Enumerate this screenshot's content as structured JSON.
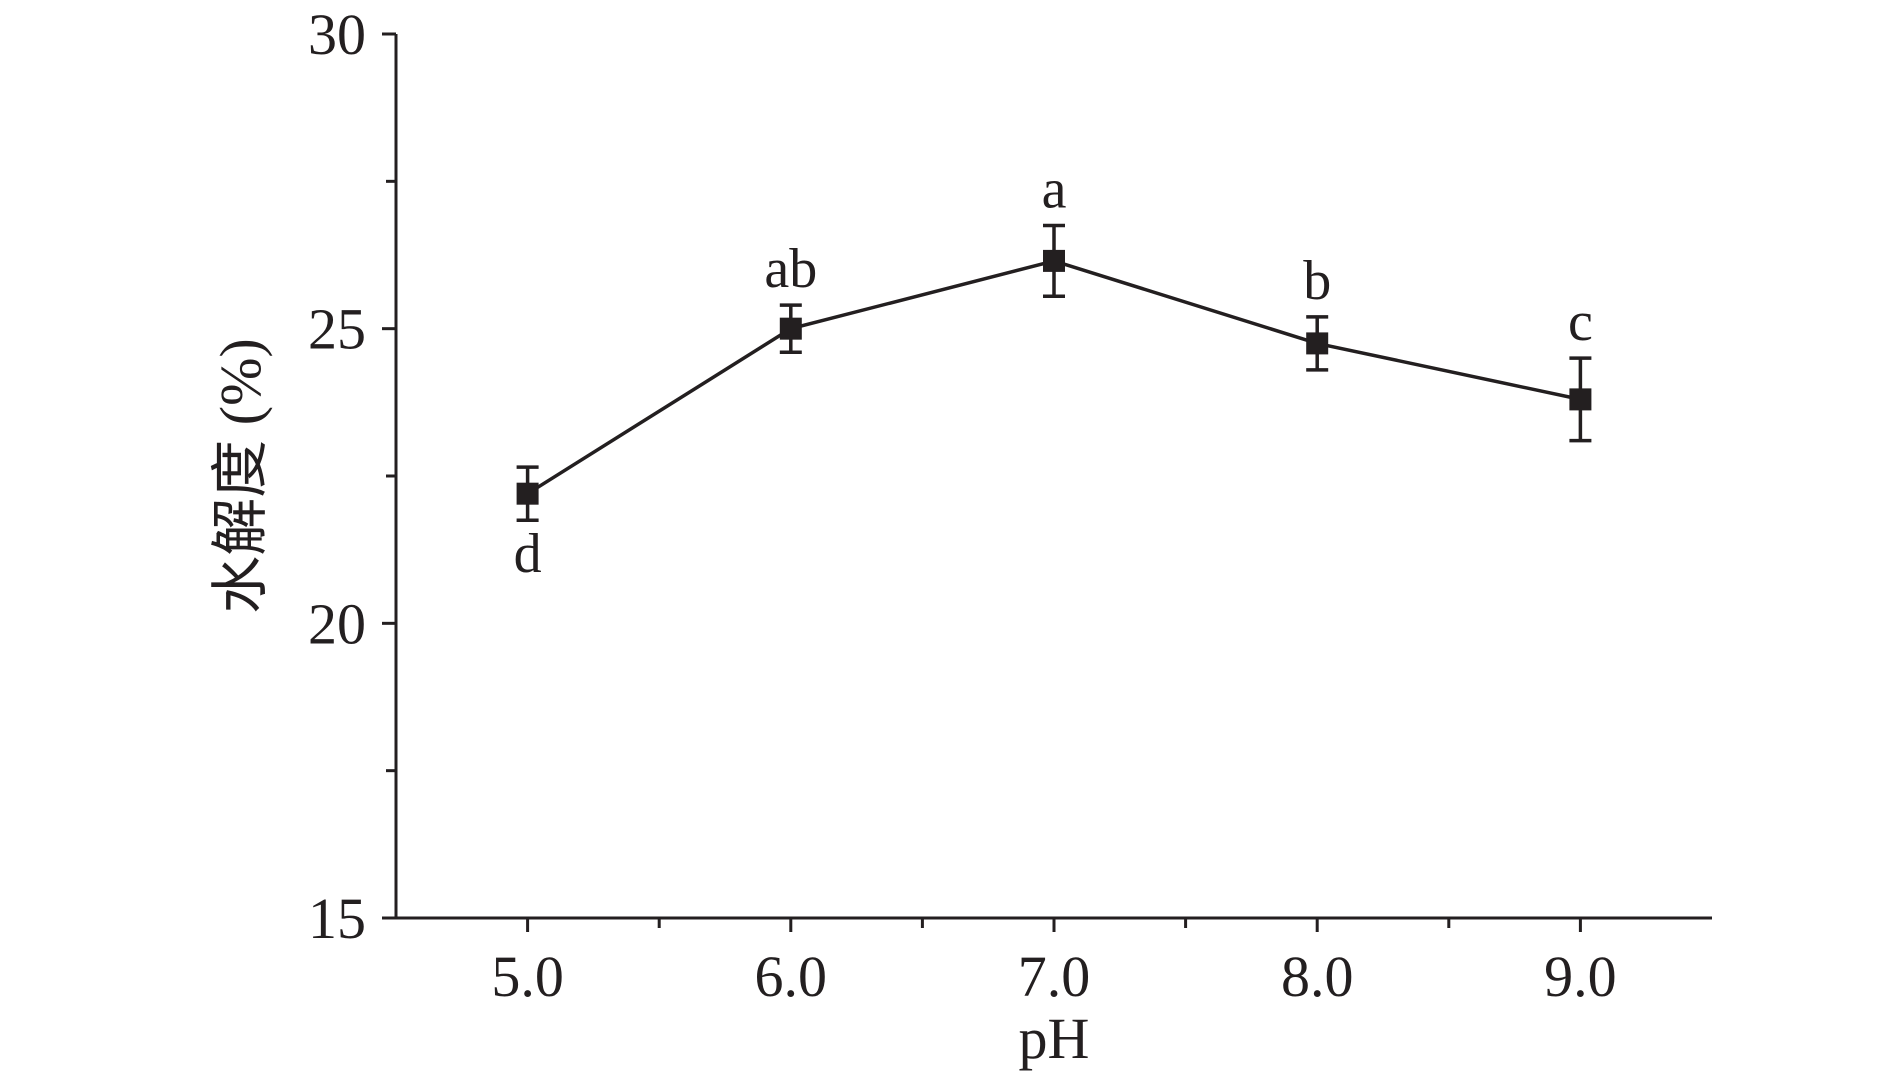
{
  "chart_data": {
    "type": "line",
    "xlabel": "pH",
    "ylabel": "水解度 (%)",
    "x": [
      "5.0",
      "6.0",
      "7.0",
      "8.0",
      "9.0"
    ],
    "xlim": [
      4.5,
      9.5
    ],
    "ylim": [
      15,
      30
    ],
    "yticks": [
      15,
      20,
      25,
      30
    ],
    "yminor": [
      17.5,
      22.5,
      27.5
    ],
    "xminor": [
      5.5,
      6.5,
      7.5,
      8.5
    ],
    "grid": false,
    "series": [
      {
        "x": [
          5.0,
          6.0,
          7.0,
          8.0,
          9.0
        ],
        "values": [
          22.2,
          25.0,
          26.15,
          24.75,
          23.8
        ],
        "error": [
          0.45,
          0.4,
          0.6,
          0.45,
          0.7
        ],
        "labels": [
          "d",
          "ab",
          "a",
          "b",
          "c"
        ],
        "label_position": [
          "below",
          "above",
          "above",
          "above",
          "above"
        ],
        "color": "#231f20",
        "marker": "square"
      }
    ]
  }
}
